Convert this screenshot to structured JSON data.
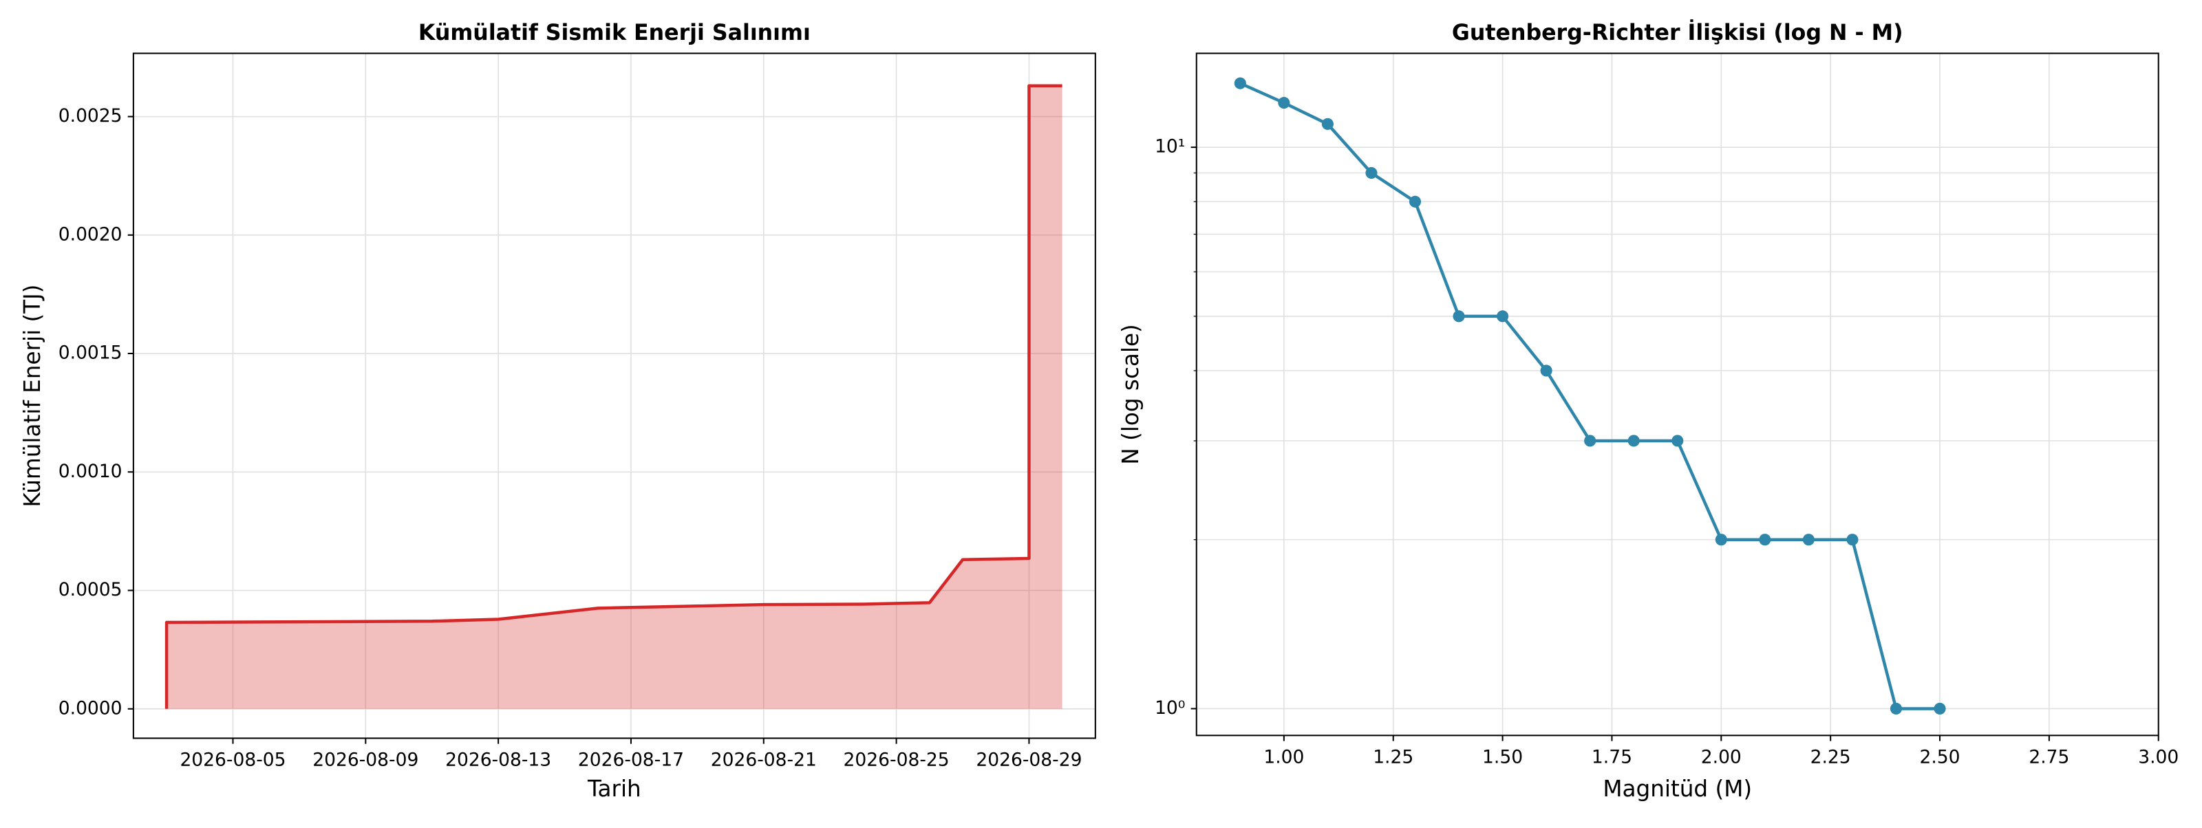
{
  "chart_data": [
    {
      "type": "line",
      "title": "Kümülatif Sismik Enerji Salınımı",
      "xlabel": "Tarih",
      "ylabel": "Kümülatif Enerji (TJ)",
      "x": [
        "2026-08-03",
        "2026-08-03",
        "2026-08-11",
        "2026-08-13",
        "2026-08-16",
        "2026-08-21",
        "2026-08-24",
        "2026-08-26",
        "2026-08-27",
        "2026-08-29",
        "2026-08-29",
        "2026-08-30"
      ],
      "values": [
        0,
        0.000365,
        0.00037,
        0.000378,
        0.000425,
        0.00044,
        0.000442,
        0.000448,
        0.00063,
        0.000635,
        0.00263,
        0.00263
      ],
      "color": "#d62728",
      "fill_area": true,
      "markers": false,
      "log_y": false,
      "grid": true,
      "xlim": [
        "2026-08-02",
        "2026-08-31"
      ],
      "xticks": [
        "2026-08-05",
        "2026-08-09",
        "2026-08-13",
        "2026-08-17",
        "2026-08-21",
        "2026-08-25",
        "2026-08-29"
      ],
      "ylim": [
        -0.000124,
        0.002767
      ],
      "yticks": [
        {
          "value": 0,
          "label": "0.0000"
        },
        {
          "value": 0.0005,
          "label": "0.0005"
        },
        {
          "value": 0.001,
          "label": "0.0010"
        },
        {
          "value": 0.0015,
          "label": "0.0015"
        },
        {
          "value": 0.002,
          "label": "0.0020"
        },
        {
          "value": 0.0025,
          "label": "0.0025"
        }
      ]
    },
    {
      "type": "line",
      "title": "Gutenberg-Richter İlişkisi (log N - M)",
      "xlabel": "Magnitüd (M)",
      "ylabel": "N (log scale)",
      "x": [
        0.9,
        1.0,
        1.1,
        1.2,
        1.3,
        1.4,
        1.5,
        1.6,
        1.7,
        1.8,
        1.9,
        2.0,
        2.1,
        2.2,
        2.3,
        2.4,
        2.5
      ],
      "values": [
        13,
        12,
        11,
        9,
        8,
        5,
        5,
        4,
        3,
        3,
        3,
        2,
        2,
        2,
        2,
        1,
        1
      ],
      "color": "#2e86ab",
      "fill_area": false,
      "markers": true,
      "log_y": true,
      "grid": true,
      "xlim": [
        0.8,
        3.0
      ],
      "xticks": [
        {
          "value": 1,
          "label": "1.00"
        },
        {
          "value": 1.25,
          "label": "1.25"
        },
        {
          "value": 1.5,
          "label": "1.50"
        },
        {
          "value": 1.75,
          "label": "1.75"
        },
        {
          "value": 2,
          "label": "2.00"
        },
        {
          "value": 2.25,
          "label": "2.25"
        },
        {
          "value": 2.5,
          "label": "2.50"
        },
        {
          "value": 2.75,
          "label": "2.75"
        },
        {
          "value": 3,
          "label": "3.00"
        }
      ],
      "ylim": [
        0.896,
        14.7
      ],
      "yticks": [
        {
          "value": 1,
          "label": "10⁰"
        },
        {
          "value": 10,
          "label": "10¹"
        }
      ],
      "minor_yticks": [
        2,
        3,
        4,
        5,
        6,
        7,
        8,
        9
      ]
    }
  ]
}
